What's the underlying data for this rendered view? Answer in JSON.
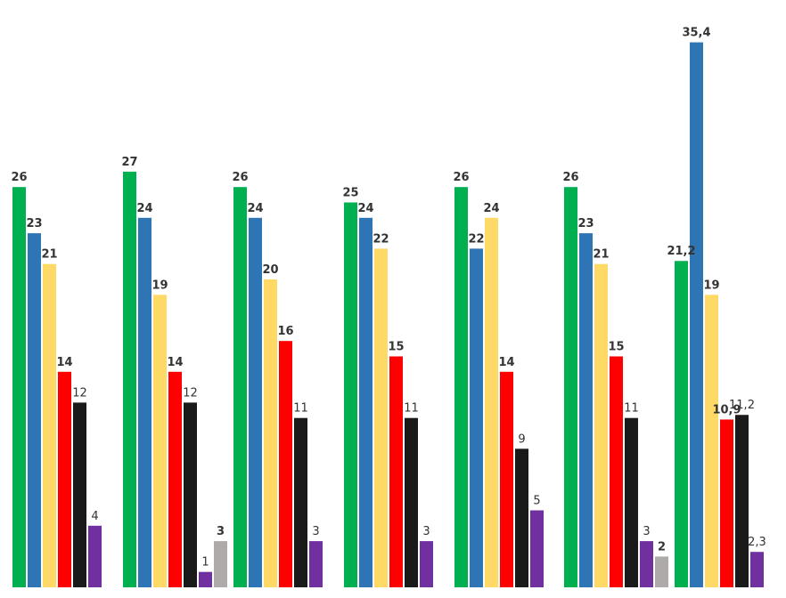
{
  "chart_data": {
    "type": "bar",
    "legend": "none",
    "grid": false,
    "ylim": [
      0,
      37
    ],
    "series_colors": [
      "#00b050",
      "#2e75b6",
      "#ffd966",
      "#ff0000",
      "#1a1a1a",
      "#7030a0",
      "#aeaaaa"
    ],
    "groups": [
      {
        "bars": [
          {
            "value": 26,
            "label": "26",
            "color": "#00b050",
            "bold": true
          },
          {
            "value": 23,
            "label": "23",
            "color": "#2e75b6",
            "bold": true
          },
          {
            "value": 21,
            "label": "21",
            "color": "#ffd966",
            "bold": true
          },
          {
            "value": 14,
            "label": "14",
            "color": "#ff0000",
            "bold": true
          },
          {
            "value": 12,
            "label": "12",
            "color": "#1a1a1a",
            "bold": false
          },
          {
            "value": 4,
            "label": "4",
            "color": "#7030a0",
            "bold": false
          }
        ]
      },
      {
        "bars": [
          {
            "value": 27,
            "label": "27",
            "color": "#00b050",
            "bold": true
          },
          {
            "value": 24,
            "label": "24",
            "color": "#2e75b6",
            "bold": true
          },
          {
            "value": 19,
            "label": "19",
            "color": "#ffd966",
            "bold": true
          },
          {
            "value": 14,
            "label": "14",
            "color": "#ff0000",
            "bold": true
          },
          {
            "value": 12,
            "label": "12",
            "color": "#1a1a1a",
            "bold": false
          },
          {
            "value": 1,
            "label": "1",
            "color": "#7030a0",
            "bold": false
          },
          {
            "value": 3,
            "label": "3",
            "color": "#aeaaaa",
            "bold": true
          }
        ]
      },
      {
        "bars": [
          {
            "value": 26,
            "label": "26",
            "color": "#00b050",
            "bold": true
          },
          {
            "value": 24,
            "label": "24",
            "color": "#2e75b6",
            "bold": true
          },
          {
            "value": 20,
            "label": "20",
            "color": "#ffd966",
            "bold": true
          },
          {
            "value": 16,
            "label": "16",
            "color": "#ff0000",
            "bold": true
          },
          {
            "value": 11,
            "label": "11",
            "color": "#1a1a1a",
            "bold": false
          },
          {
            "value": 3,
            "label": "3",
            "color": "#7030a0",
            "bold": false
          }
        ]
      },
      {
        "bars": [
          {
            "value": 25,
            "label": "25",
            "color": "#00b050",
            "bold": true
          },
          {
            "value": 24,
            "label": "24",
            "color": "#2e75b6",
            "bold": true
          },
          {
            "value": 22,
            "label": "22",
            "color": "#ffd966",
            "bold": true
          },
          {
            "value": 15,
            "label": "15",
            "color": "#ff0000",
            "bold": true
          },
          {
            "value": 11,
            "label": "11",
            "color": "#1a1a1a",
            "bold": false
          },
          {
            "value": 3,
            "label": "3",
            "color": "#7030a0",
            "bold": false
          }
        ]
      },
      {
        "bars": [
          {
            "value": 26,
            "label": "26",
            "color": "#00b050",
            "bold": true
          },
          {
            "value": 22,
            "label": "22",
            "color": "#2e75b6",
            "bold": true
          },
          {
            "value": 24,
            "label": "24",
            "color": "#ffd966",
            "bold": true
          },
          {
            "value": 14,
            "label": "14",
            "color": "#ff0000",
            "bold": true
          },
          {
            "value": 9,
            "label": "9",
            "color": "#1a1a1a",
            "bold": false
          },
          {
            "value": 5,
            "label": "5",
            "color": "#7030a0",
            "bold": false
          }
        ]
      },
      {
        "bars": [
          {
            "value": 26,
            "label": "26",
            "color": "#00b050",
            "bold": true
          },
          {
            "value": 23,
            "label": "23",
            "color": "#2e75b6",
            "bold": true
          },
          {
            "value": 21,
            "label": "21",
            "color": "#ffd966",
            "bold": true
          },
          {
            "value": 15,
            "label": "15",
            "color": "#ff0000",
            "bold": true
          },
          {
            "value": 11,
            "label": "11",
            "color": "#1a1a1a",
            "bold": false
          },
          {
            "value": 3,
            "label": "3",
            "color": "#7030a0",
            "bold": false
          },
          {
            "value": 2,
            "label": "2",
            "color": "#aeaaaa",
            "bold": true
          }
        ]
      },
      {
        "bars": [
          {
            "value": 21.2,
            "label": "21,2",
            "color": "#00b050",
            "bold": true
          },
          {
            "value": 35.4,
            "label": "35,4",
            "color": "#2e75b6",
            "bold": true
          },
          {
            "value": 19,
            "label": "19",
            "color": "#ffd966",
            "bold": true
          },
          {
            "value": 10.9,
            "label": "10,9",
            "color": "#ff0000",
            "bold": true
          },
          {
            "value": 11.2,
            "label": "11,2",
            "color": "#1a1a1a",
            "bold": false
          },
          {
            "value": 2.3,
            "label": "2,3",
            "color": "#7030a0",
            "bold": false
          }
        ]
      }
    ]
  }
}
